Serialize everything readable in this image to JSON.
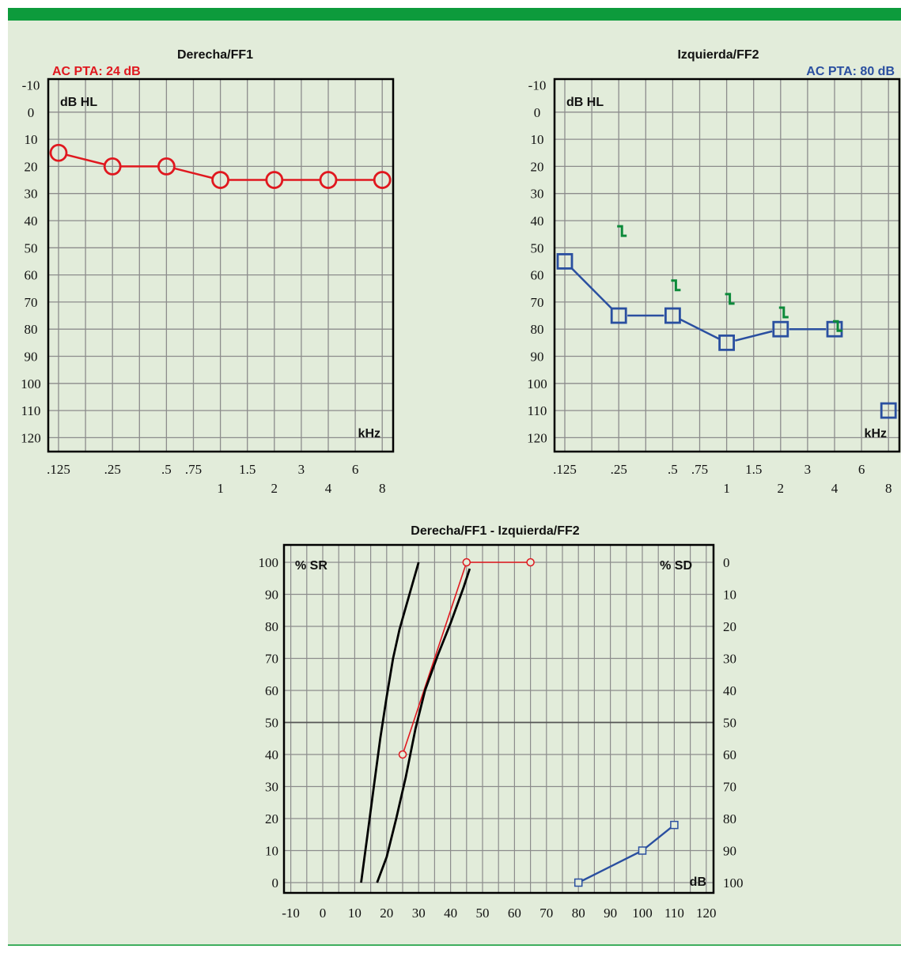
{
  "colors": {
    "header": "#0d9b3c",
    "background": "#e2ecda",
    "grid": "#8c8c8c",
    "right_ear": "#e0181f",
    "left_ear": "#2a4fa0",
    "masked_bone": "#0d8a3a",
    "curve": "#000000"
  },
  "chart_data": [
    {
      "type": "line",
      "title": "Derecha/FF1",
      "pta_label": "AC PTA: 24 dB",
      "ylabel": "dB HL",
      "xlabel": "kHz",
      "ylim": [
        -10,
        120
      ],
      "y_reversed": true,
      "yticks": [
        -10,
        0,
        10,
        20,
        30,
        40,
        50,
        60,
        70,
        80,
        90,
        100,
        110,
        120
      ],
      "xticks_top": [
        ".125",
        ".25",
        ".5",
        ".75",
        "1.5",
        "3",
        "6"
      ],
      "xticks_bottom": [
        "1",
        "2",
        "4",
        "8"
      ],
      "series": [
        {
          "marker": "circle",
          "x": [
            0.125,
            0.25,
            0.5,
            1,
            2,
            4,
            8
          ],
          "y": [
            15,
            20,
            20,
            25,
            25,
            25,
            25
          ]
        }
      ]
    },
    {
      "type": "line",
      "title": "Izquierda/FF2",
      "pta_label": "AC PTA: 80 dB",
      "ylabel": "dB HL",
      "xlabel": "kHz",
      "ylim": [
        -10,
        120
      ],
      "y_reversed": true,
      "yticks": [
        -10,
        0,
        10,
        20,
        30,
        40,
        50,
        60,
        70,
        80,
        90,
        100,
        110,
        120
      ],
      "xticks_top": [
        ".125",
        ".25",
        ".5",
        ".75",
        "1.5",
        "3",
        "6"
      ],
      "xticks_bottom": [
        "1",
        "2",
        "4",
        "8"
      ],
      "series": [
        {
          "marker": "square",
          "x": [
            0.125,
            0.25,
            0.5,
            1,
            2,
            4
          ],
          "y": [
            55,
            75,
            75,
            85,
            80,
            80
          ]
        },
        {
          "marker": "square",
          "connected": false,
          "x": [
            8
          ],
          "y": [
            110
          ]
        },
        {
          "marker": "masked-bone-bracket",
          "connected": false,
          "x": [
            0.25,
            0.5,
            1,
            2,
            4
          ],
          "y": [
            45,
            65,
            70,
            75,
            80
          ]
        }
      ]
    },
    {
      "type": "line",
      "title": "Derecha/FF1 - Izquierda/FF2",
      "ylabel": "% SR",
      "ylabel_right": "% SD",
      "xlabel": "dB",
      "xlim": [
        -10,
        120
      ],
      "ylim": [
        0,
        100
      ],
      "xticks": [
        -10,
        0,
        10,
        20,
        30,
        40,
        50,
        60,
        70,
        80,
        90,
        100,
        110,
        120
      ],
      "yticks_left": [
        0,
        10,
        20,
        30,
        40,
        50,
        60,
        70,
        80,
        90,
        100
      ],
      "yticks_right": [
        100,
        90,
        80,
        70,
        60,
        50,
        40,
        30,
        20,
        10,
        0
      ],
      "series": [
        {
          "marker": "circle",
          "x": [
            25,
            45,
            65
          ],
          "y": [
            40,
            100,
            100
          ]
        },
        {
          "marker": "square",
          "x": [
            80,
            100,
            110
          ],
          "y": [
            0,
            10,
            18
          ]
        },
        {
          "marker": "none",
          "x": [
            12,
            14,
            16,
            18,
            20,
            22,
            24,
            26,
            28,
            30
          ],
          "y": [
            0,
            15,
            30,
            45,
            58,
            70,
            79,
            86,
            93,
            100
          ]
        },
        {
          "marker": "none",
          "x": [
            17,
            20,
            23,
            26,
            29,
            32,
            36,
            40,
            44,
            46
          ],
          "y": [
            0,
            8,
            20,
            33,
            48,
            60,
            71,
            81,
            92,
            98
          ]
        }
      ]
    }
  ]
}
